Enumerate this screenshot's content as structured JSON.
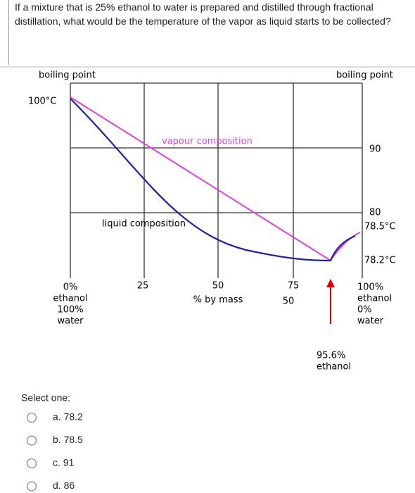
{
  "question": "If a mixture that is 25% ethanol to water is prepared and distilled through fractional distillation, what would be the temperature of the vapor as liquid starts to be collected?",
  "diagram": {
    "left_axis_label": "boiling point",
    "right_axis_label": "boiling point",
    "left_top": "100°C",
    "vapour_label": "vapour composition",
    "liquid_label": "liquid composition",
    "right_labels": [
      "90",
      "80",
      "78.5°C",
      "78.2°C"
    ],
    "x_ticks": [
      "25",
      "50",
      "75"
    ],
    "x_axis_label": "% by mass",
    "x_sub": "50",
    "left_end": [
      "0%",
      "ethanol",
      "100%",
      "water"
    ],
    "right_end": [
      "100%",
      "ethanol",
      "0%",
      "water"
    ],
    "azeotrope": [
      "95.6%",
      "ethanol"
    ]
  },
  "select_label": "Select one:",
  "options": [
    "a. 78.2",
    "b. 78.5",
    "c. 91",
    "d. 86"
  ]
}
